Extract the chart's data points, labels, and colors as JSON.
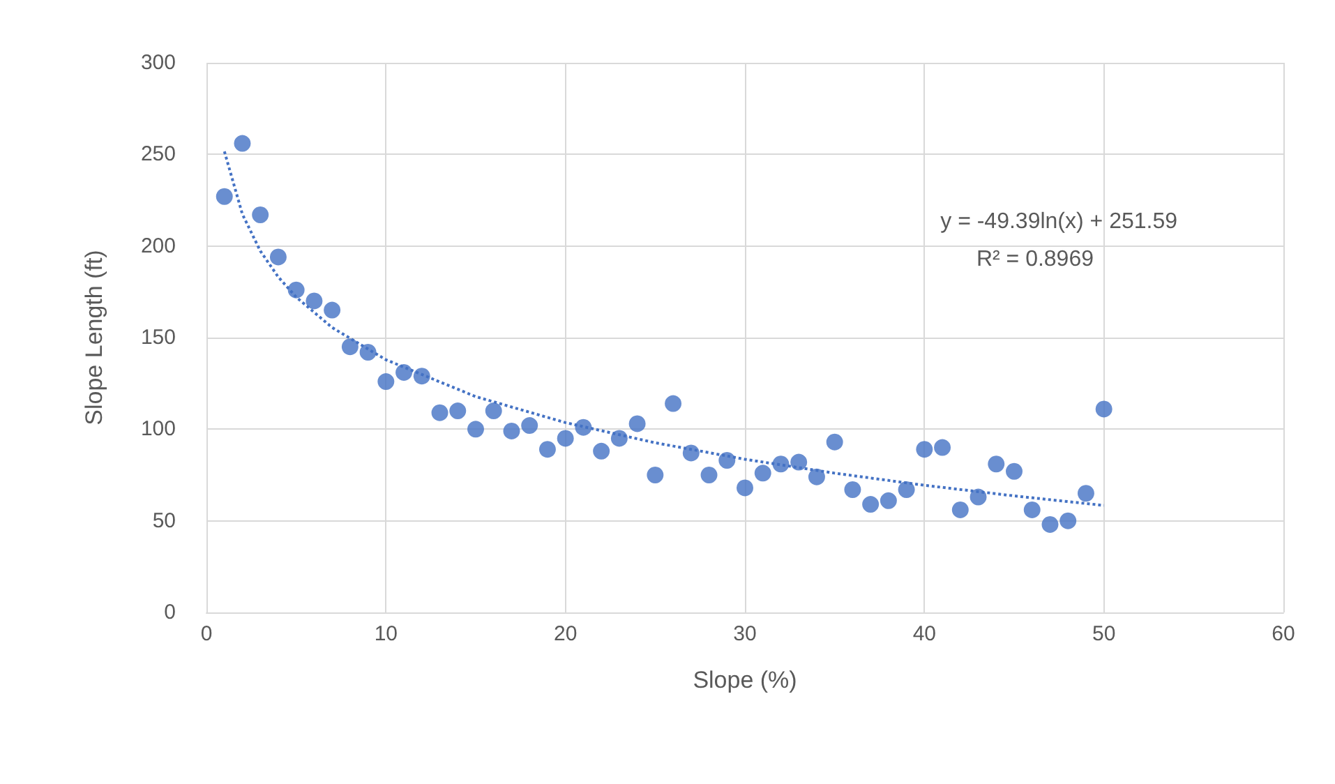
{
  "chart_data": {
    "type": "scatter",
    "xlabel": "Slope (%)",
    "ylabel": "Slope Length (ft)",
    "xlim": [
      0,
      60
    ],
    "xticks": [
      0,
      10,
      20,
      30,
      40,
      50,
      60
    ],
    "ylim": [
      0,
      300
    ],
    "yticks": [
      0,
      50,
      100,
      150,
      200,
      250,
      300
    ],
    "grid": true,
    "marker": "circle",
    "annotations": [
      "y = -49.39ln(x) + 251.59",
      "R² = 0.8969"
    ],
    "series": [
      {
        "color": "#4472c4",
        "x": [
          1,
          2,
          3,
          4,
          5,
          6,
          7,
          8,
          9,
          10,
          11,
          12,
          13,
          14,
          15,
          16,
          17,
          18,
          19,
          20,
          21,
          22,
          23,
          24,
          25,
          26,
          27,
          28,
          29,
          30,
          31,
          32,
          33,
          34,
          35,
          36,
          37,
          38,
          39,
          40,
          41,
          42,
          43,
          44,
          45,
          46,
          47,
          48,
          49,
          50
        ],
        "values": [
          227,
          256,
          217,
          194,
          176,
          170,
          165,
          145,
          142,
          126,
          131,
          129,
          109,
          110,
          100,
          110,
          99,
          102,
          89,
          95,
          101,
          88,
          95,
          103,
          75,
          114,
          87,
          75,
          83,
          68,
          76,
          81,
          82,
          74,
          93,
          67,
          59,
          61,
          67,
          89,
          90,
          56,
          63,
          81,
          77,
          56,
          48,
          50,
          65,
          111
        ]
      },
      {
        "type": "line",
        "color": "#4472c4",
        "line_style": "dotted",
        "marker": "none",
        "x": [
          1,
          2,
          3,
          4,
          5,
          7,
          10,
          15,
          20,
          25,
          30,
          35,
          40,
          45,
          50
        ],
        "values": [
          251.6,
          217.4,
          197.3,
          183.1,
          172.1,
          155.5,
          137.9,
          117.8,
          103.6,
          92.6,
          83.6,
          76.0,
          69.4,
          63.6,
          58.4
        ]
      }
    ]
  }
}
